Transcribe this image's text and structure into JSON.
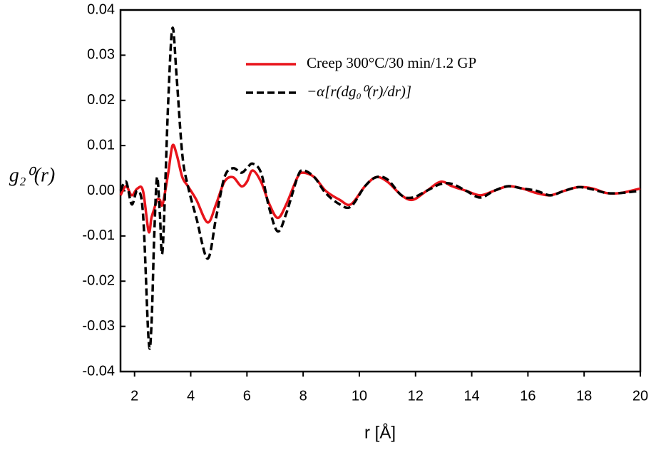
{
  "chart_data": {
    "type": "line",
    "y_label": "g₂⁰(r)",
    "x_label": "r [Å]",
    "x": [
      1.5,
      1.7,
      1.9,
      2.1,
      2.3,
      2.5,
      2.6,
      2.7,
      2.8,
      2.9,
      3.0,
      3.2,
      3.35,
      3.5,
      3.7,
      3.9,
      4.2,
      4.6,
      4.9,
      5.2,
      5.5,
      5.8,
      6.0,
      6.2,
      6.5,
      6.8,
      7.1,
      7.4,
      7.8,
      8.0,
      8.4,
      8.8,
      9.3,
      9.7,
      10.2,
      10.6,
      11.0,
      11.5,
      11.9,
      12.4,
      12.9,
      13.3,
      13.8,
      14.3,
      14.8,
      15.3,
      15.8,
      16.3,
      16.8,
      17.3,
      17.8,
      18.3,
      18.8,
      19.3,
      20
    ],
    "series": [
      {
        "name": "Creep 300°C/30 min/1.2 GP",
        "color": "#e8141b",
        "dash": false,
        "values": [
          -0.001,
          0.001,
          -0.001,
          0.0005,
          0,
          -0.009,
          -0.006,
          -0.004,
          -0.002,
          -0.002,
          -0.003,
          0.004,
          0.01,
          0.008,
          0.003,
          0.001,
          -0.002,
          -0.007,
          -0.003,
          0.002,
          0.003,
          0.001,
          0.002,
          0.0045,
          0.002,
          -0.003,
          -0.006,
          -0.003,
          0.003,
          0.004,
          0.003,
          0,
          -0.002,
          -0.003,
          0.001,
          0.003,
          0.002,
          -0.001,
          -0.002,
          0,
          0.002,
          0.001,
          0,
          -0.001,
          0,
          0.001,
          0.0005,
          -0.0005,
          -0.001,
          0,
          0.0008,
          0.0005,
          -0.0005,
          -0.0005,
          0.0005
        ]
      },
      {
        "name": "−α[r(dg₀⁰(r)/dr)]",
        "color": "#000000",
        "dash": true,
        "values": [
          0,
          0.002,
          -0.003,
          0,
          -0.005,
          -0.033,
          -0.03,
          -0.01,
          0.003,
          -0.005,
          -0.013,
          0.02,
          0.036,
          0.025,
          0.008,
          0.001,
          -0.006,
          -0.015,
          -0.006,
          0.003,
          0.005,
          0.004,
          0.005,
          0.006,
          0.004,
          -0.004,
          -0.009,
          -0.005,
          0.003,
          0.0045,
          0.003,
          -0.0005,
          -0.003,
          -0.0035,
          0.001,
          0.003,
          0.0025,
          -0.001,
          -0.0015,
          0,
          0.0015,
          0.0015,
          0,
          -0.0015,
          0,
          0.001,
          0.0005,
          0,
          -0.001,
          0,
          0.0008,
          0.0003,
          -0.0005,
          -0.0005,
          0
        ]
      }
    ],
    "xlim": [
      1.5,
      20
    ],
    "xticks": [
      2,
      4,
      6,
      8,
      10,
      12,
      14,
      16,
      18,
      20
    ],
    "ylim": [
      -0.04,
      0.04
    ],
    "yticks": [
      -0.04,
      -0.03,
      -0.02,
      -0.01,
      {
        "value": 0,
        "label": "0.00"
      },
      0.01,
      0.02,
      0.03,
      0.04
    ],
    "grid": false,
    "legend": "upper right"
  }
}
